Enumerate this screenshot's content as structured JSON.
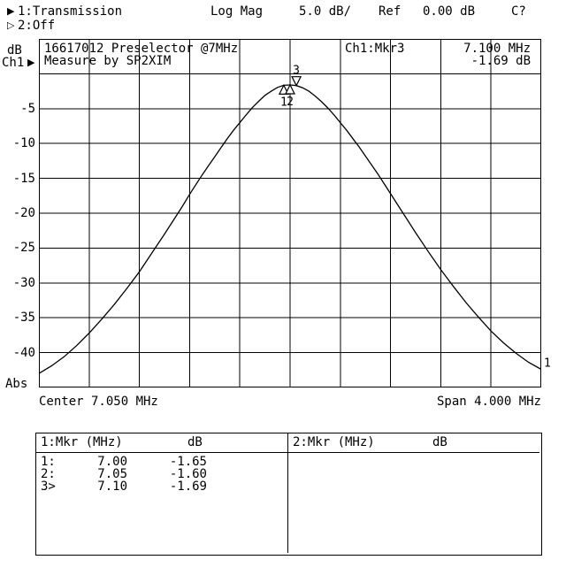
{
  "header": {
    "ch1_indicator_glyph": "▶",
    "ch1_label": "1:Transmission",
    "format_label": "Log Mag",
    "scale_label": "5.0 dB/",
    "ref_label": "Ref",
    "ref_value": "0.00 dB",
    "cal_status": "C?",
    "ch2_indicator_glyph": "▷",
    "ch2_label": "2:Off"
  },
  "plot": {
    "unit_label": "dB",
    "channel_label": "Ch1",
    "ref_arrow_glyph": "▶",
    "y_axis_labels": [
      "-5",
      "-10",
      "-15",
      "-20",
      "-25",
      "-30",
      "-35",
      "-40"
    ],
    "abs_label": "Abs",
    "title_line1": "16617012 Preselector @7MHz",
    "title_line2": "Measure by SP2XIM",
    "readout_label": "Ch1:Mkr3",
    "readout_freq": "7.100 MHz",
    "readout_value": "-1.69 dB",
    "center_label": "Center 7.050 MHz",
    "span_label": "Span 4.000 MHz"
  },
  "marker_table": {
    "col1_header": "1:Mkr (MHz)",
    "col1_unit": "dB",
    "col2_header": "2:Mkr (MHz)",
    "col2_unit": "dB",
    "rows": [
      {
        "label": "1:",
        "freq": "7.00",
        "value": "-1.65"
      },
      {
        "label": "2:",
        "freq": "7.05",
        "value": "-1.60"
      },
      {
        "label": "3>",
        "freq": "7.10",
        "value": "-1.69"
      }
    ]
  },
  "chart_data": {
    "type": "line",
    "title": "16617012 Preselector @7MHz",
    "subtitle": "Measure by SP2XIM",
    "x_label": "MHz",
    "y_label": "dB",
    "trace_number": "1",
    "x_axis": {
      "min": 5.05,
      "max": 9.05,
      "center_mhz": 7.05,
      "span_mhz": 4.0,
      "divisions": 10
    },
    "y_axis": {
      "top": 5,
      "bottom": -45,
      "db_per_div": 5.0,
      "ref_db": 0.0,
      "divisions": 10
    },
    "markers": [
      {
        "n": 1,
        "freq_mhz": 7.0,
        "db": -1.65,
        "symbol": "up",
        "active": false
      },
      {
        "n": 2,
        "freq_mhz": 7.05,
        "db": -1.6,
        "symbol": "up",
        "active": false
      },
      {
        "n": 3,
        "freq_mhz": 7.1,
        "db": -1.69,
        "symbol": "down",
        "active": true
      }
    ],
    "series": [
      {
        "name": "Ch1 Transmission Log Mag",
        "points": [
          [
            5.05,
            -43.0
          ],
          [
            5.15,
            -41.9
          ],
          [
            5.25,
            -40.6
          ],
          [
            5.35,
            -39.0
          ],
          [
            5.45,
            -37.2
          ],
          [
            5.55,
            -35.2
          ],
          [
            5.65,
            -33.1
          ],
          [
            5.75,
            -30.8
          ],
          [
            5.85,
            -28.4
          ],
          [
            5.95,
            -25.7
          ],
          [
            6.05,
            -23.0
          ],
          [
            6.1,
            -21.6
          ],
          [
            6.15,
            -20.2
          ],
          [
            6.2,
            -18.8
          ],
          [
            6.25,
            -17.3
          ],
          [
            6.3,
            -15.9
          ],
          [
            6.35,
            -14.5
          ],
          [
            6.4,
            -13.2
          ],
          [
            6.45,
            -11.9
          ],
          [
            6.5,
            -10.6
          ],
          [
            6.55,
            -9.3
          ],
          [
            6.6,
            -8.1
          ],
          [
            6.65,
            -7.0
          ],
          [
            6.7,
            -5.9
          ],
          [
            6.75,
            -4.85
          ],
          [
            6.8,
            -3.95
          ],
          [
            6.85,
            -3.1
          ],
          [
            6.9,
            -2.5
          ],
          [
            6.95,
            -1.95
          ],
          [
            7.0,
            -1.65
          ],
          [
            7.05,
            -1.6
          ],
          [
            7.1,
            -1.69
          ],
          [
            7.15,
            -2.0
          ],
          [
            7.2,
            -2.5
          ],
          [
            7.25,
            -3.2
          ],
          [
            7.3,
            -4.0
          ],
          [
            7.35,
            -4.9
          ],
          [
            7.4,
            -5.9
          ],
          [
            7.45,
            -7.0
          ],
          [
            7.5,
            -8.1
          ],
          [
            7.55,
            -9.3
          ],
          [
            7.6,
            -10.5
          ],
          [
            7.65,
            -11.8
          ],
          [
            7.7,
            -13.1
          ],
          [
            7.75,
            -14.4
          ],
          [
            7.8,
            -15.8
          ],
          [
            7.85,
            -17.2
          ],
          [
            7.9,
            -18.6
          ],
          [
            7.95,
            -20.0
          ],
          [
            8.0,
            -21.4
          ],
          [
            8.05,
            -22.8
          ],
          [
            8.15,
            -25.5
          ],
          [
            8.25,
            -28.1
          ],
          [
            8.35,
            -30.5
          ],
          [
            8.45,
            -32.8
          ],
          [
            8.55,
            -34.9
          ],
          [
            8.65,
            -36.9
          ],
          [
            8.75,
            -38.6
          ],
          [
            8.85,
            -40.1
          ],
          [
            8.95,
            -41.4
          ],
          [
            9.05,
            -42.4
          ]
        ]
      }
    ]
  }
}
